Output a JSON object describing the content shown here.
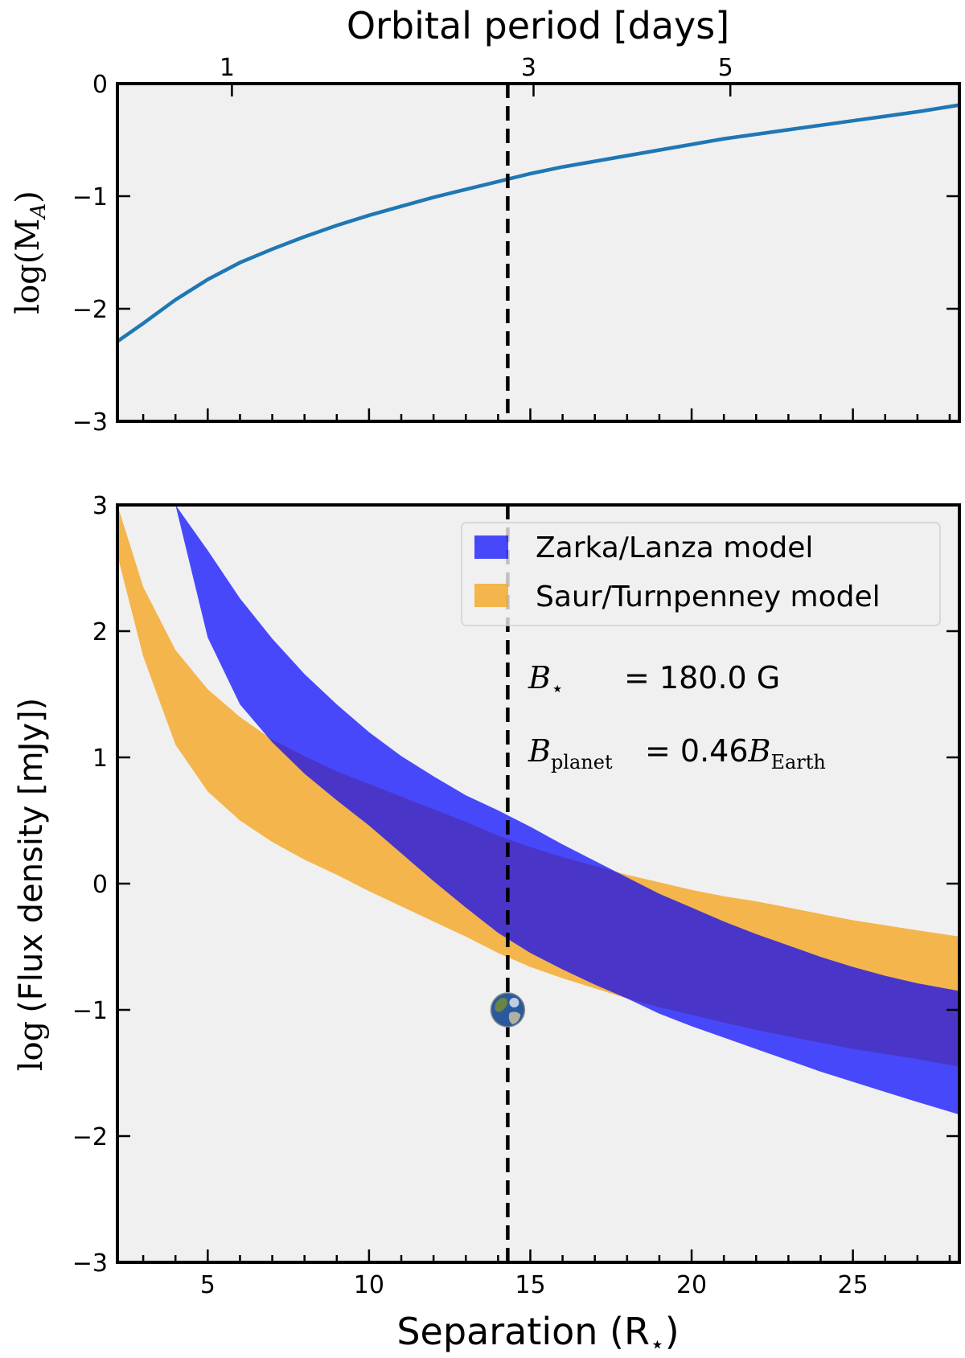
{
  "chart_data": [
    {
      "id": "top",
      "type": "line",
      "title": "",
      "top_axis_label": "Orbital period [days]",
      "top_ticks": [
        {
          "label": "1",
          "x": 5.75
        },
        {
          "label": "3",
          "x": 15.1
        },
        {
          "label": "5",
          "x": 21.2
        }
      ],
      "ylabel_prefix": "log",
      "ylabel_math": "(M",
      "ylabel_sub": "A",
      "ylabel_suffix": ")",
      "xlim": [
        2.2,
        28.3
      ],
      "ylim": [
        -3,
        0
      ],
      "y_ticks": [
        0,
        -1,
        -2,
        -3
      ],
      "y_tick_labels": [
        "0",
        "−1",
        "−2",
        "−3"
      ],
      "x_major_ticks": [
        5,
        10,
        15,
        20,
        25
      ],
      "series": [
        {
          "name": "log(M_A)",
          "color": "#1f77b4",
          "x": [
            2.2,
            3,
            4,
            5,
            6,
            7,
            8,
            9,
            10,
            11,
            12,
            13,
            14,
            15,
            16,
            17,
            18,
            19,
            20,
            21,
            22,
            23,
            24,
            25,
            26,
            27,
            28.3
          ],
          "y": [
            -2.29,
            -2.13,
            -1.92,
            -1.74,
            -1.59,
            -1.47,
            -1.36,
            -1.26,
            -1.17,
            -1.09,
            -1.01,
            -0.94,
            -0.87,
            -0.8,
            -0.74,
            -0.69,
            -0.64,
            -0.59,
            -0.54,
            -0.49,
            -0.45,
            -0.41,
            -0.37,
            -0.33,
            -0.29,
            -0.25,
            -0.19
          ]
        }
      ],
      "vline_x": 14.3
    },
    {
      "id": "bottom",
      "type": "area",
      "xlabel": "Separation (R",
      "xlabel_star": "⋆",
      "xlabel_end": ")",
      "ylabel_prefix": "log",
      "ylabel_text": "(Flux density [mJy])",
      "xlim": [
        2.2,
        28.3
      ],
      "ylim": [
        -3,
        3
      ],
      "x_ticks": [
        5,
        10,
        15,
        20,
        25
      ],
      "x_tick_labels": [
        "5",
        "10",
        "15",
        "20",
        "25"
      ],
      "y_ticks": [
        3,
        2,
        1,
        0,
        -1,
        -2,
        -3
      ],
      "y_tick_labels": [
        "3",
        "2",
        "1",
        "0",
        "−1",
        "−2",
        "−3"
      ],
      "series": [
        {
          "name": "Saur/Turnpenney model",
          "color": "#f5a623",
          "opacity": 0.8,
          "x": [
            2.2,
            3,
            4,
            5,
            6,
            7,
            8,
            9,
            10,
            11,
            12,
            13,
            14,
            15,
            16,
            17,
            18,
            19,
            20,
            21,
            22,
            23,
            24,
            25,
            26,
            27,
            28.3
          ],
          "upper": [
            3.0,
            2.35,
            1.85,
            1.54,
            1.32,
            1.14,
            1.01,
            0.89,
            0.79,
            0.69,
            0.59,
            0.49,
            0.38,
            0.29,
            0.21,
            0.14,
            0.07,
            0.01,
            -0.05,
            -0.1,
            -0.14,
            -0.19,
            -0.24,
            -0.29,
            -0.33,
            -0.37,
            -0.42
          ],
          "lower": [
            2.6,
            1.8,
            1.1,
            0.73,
            0.5,
            0.33,
            0.19,
            0.07,
            -0.06,
            -0.18,
            -0.3,
            -0.42,
            -0.55,
            -0.66,
            -0.75,
            -0.83,
            -0.91,
            -0.98,
            -1.04,
            -1.1,
            -1.16,
            -1.21,
            -1.26,
            -1.31,
            -1.35,
            -1.39,
            -1.45
          ]
        },
        {
          "name": "Zarka/Lanza model",
          "color": "#0000ff",
          "opacity": 0.7,
          "x": [
            3.4,
            4,
            5,
            6,
            7,
            8,
            9,
            10,
            11,
            12,
            13,
            14,
            15,
            16,
            17,
            18,
            19,
            20,
            21,
            22,
            23,
            24,
            25,
            26,
            27,
            28.3
          ],
          "upper": [
            3.0,
            3.0,
            2.64,
            2.26,
            1.94,
            1.66,
            1.42,
            1.2,
            1.01,
            0.85,
            0.7,
            0.58,
            0.45,
            0.31,
            0.18,
            0.05,
            -0.08,
            -0.19,
            -0.3,
            -0.4,
            -0.49,
            -0.58,
            -0.66,
            -0.73,
            -0.79,
            -0.85
          ],
          "lower": [
            3.0,
            3.0,
            1.95,
            1.42,
            1.12,
            0.87,
            0.66,
            0.46,
            0.24,
            0.02,
            -0.19,
            -0.39,
            -0.55,
            -0.68,
            -0.8,
            -0.91,
            -1.03,
            -1.13,
            -1.22,
            -1.31,
            -1.4,
            -1.49,
            -1.57,
            -1.65,
            -1.73,
            -1.83
          ]
        }
      ],
      "vline_x": 14.3,
      "earth_marker": {
        "x": 14.3,
        "y": -1.0,
        "name": "Earth"
      },
      "legend": {
        "position": "upper right",
        "entries": [
          "Zarka/Lanza model",
          "Saur/Turnpenney model"
        ]
      },
      "annotations": {
        "bstar_symbol": "B",
        "bstar_sub": "⋆",
        "bstar_value": "= 180.0 G",
        "bplanet_symbol": "B",
        "bplanet_sub": "planet",
        "bplanet_value": "= 0.46",
        "bearth_symbol": "B",
        "bearth_sub": "Earth"
      }
    }
  ]
}
